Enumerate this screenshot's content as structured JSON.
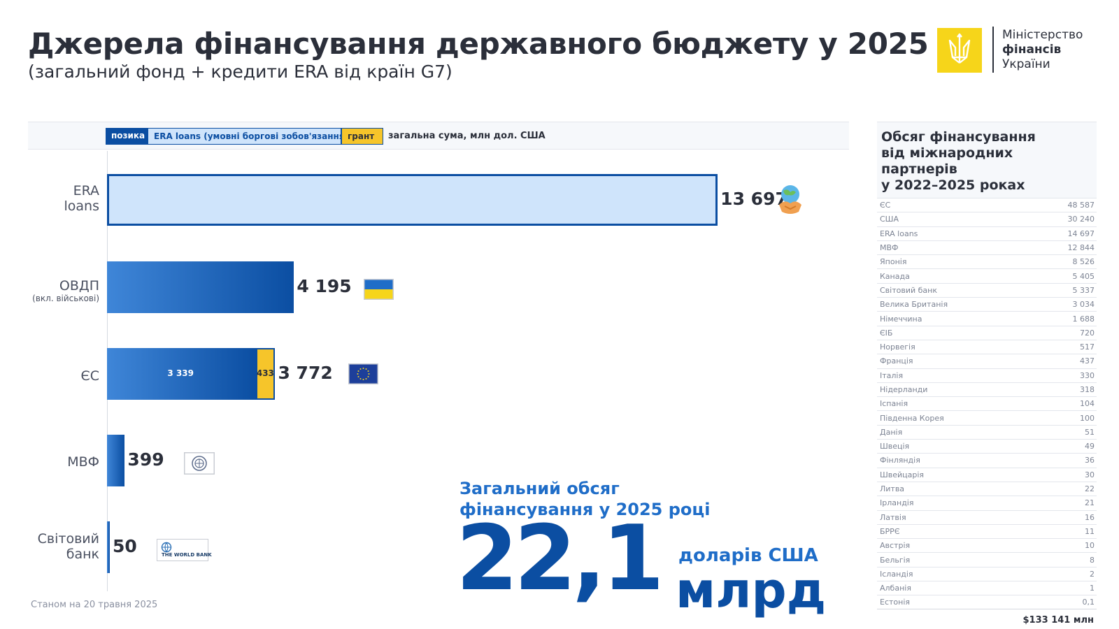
{
  "header": {
    "title": "Джерела фінансування державного бюджету у 2025",
    "subtitle": "(загальний фонд + кредити ERA від країн G7)"
  },
  "logo": {
    "line1": "Міністерство",
    "line2": "фінансів",
    "line3": "України"
  },
  "legend": {
    "loan": "позика",
    "era": "ERA loans (умовні боргові зобов'язання)",
    "grant": "грант",
    "total": "загальна сума, млн дол. США"
  },
  "colors": {
    "loan": "#0b4ea2",
    "era": "#cfe4fb",
    "grant": "#f6c52a",
    "accent": "#1f6dc8"
  },
  "chart_data": {
    "type": "bar",
    "orientation": "horizontal",
    "stacked": true,
    "categories": [
      "ERA loans",
      "ОВДП",
      "ЄС",
      "МВФ",
      "Світовий банк"
    ],
    "category_sublabels": [
      "",
      "(вкл. військові)",
      "",
      "",
      ""
    ],
    "series": [
      {
        "name": "ERA loans (умовні боргові зобов'язання)",
        "values": [
          13697,
          0,
          0,
          0,
          0
        ]
      },
      {
        "name": "позика",
        "values": [
          0,
          4195,
          3339,
          399,
          50
        ]
      },
      {
        "name": "грант",
        "values": [
          0,
          0,
          433,
          0,
          0
        ]
      }
    ],
    "totals": [
      "13 697",
      "4 195",
      "3 772",
      "399",
      "50"
    ],
    "segment_labels": {
      "eu_loan": "3 339",
      "eu_grant": "433"
    },
    "xlim": [
      0,
      16000
    ],
    "grid": false,
    "legend_position": "top",
    "icons": [
      "handshake-globe-icon",
      "ukraine-flag-icon",
      "eu-flag-icon",
      "imf-logo-icon",
      "world-bank-logo-icon"
    ]
  },
  "world_bank_logo_text": "THE WORLD BANK",
  "footnote": "Станом на 20 травня 2025",
  "total": {
    "caption_line1": "Загальний обсяг",
    "caption_line2": "фінансування у 2025 році",
    "value": "22,1",
    "unit": "доларів США",
    "scale": "млрд"
  },
  "partners": {
    "title_line1": "Обсяг фінансування",
    "title_line2": "від міжнародних партнерів",
    "title_line3": "у 2022–2025 роках",
    "rows": [
      {
        "name": "ЄС",
        "value": "48 587"
      },
      {
        "name": "США",
        "value": "30 240"
      },
      {
        "name": "ERA loans",
        "value": "14 697"
      },
      {
        "name": "МВФ",
        "value": "12 844"
      },
      {
        "name": "Японія",
        "value": "8 526"
      },
      {
        "name": "Канада",
        "value": "5 405"
      },
      {
        "name": "Світовий банк",
        "value": "5 337"
      },
      {
        "name": "Велика Британія",
        "value": "3 034"
      },
      {
        "name": "Німеччина",
        "value": "1 688"
      },
      {
        "name": "ЄІБ",
        "value": "720"
      },
      {
        "name": "Норвегія",
        "value": "517"
      },
      {
        "name": "Франція",
        "value": "437"
      },
      {
        "name": "Італія",
        "value": "330"
      },
      {
        "name": "Нідерланди",
        "value": "318"
      },
      {
        "name": "Іспанія",
        "value": "104"
      },
      {
        "name": "Південна Корея",
        "value": "100"
      },
      {
        "name": "Данія",
        "value": "51"
      },
      {
        "name": "Швеція",
        "value": "49"
      },
      {
        "name": "Фінляндія",
        "value": "36"
      },
      {
        "name": "Швейцарія",
        "value": "30"
      },
      {
        "name": "Литва",
        "value": "22"
      },
      {
        "name": "Ірландія",
        "value": "21"
      },
      {
        "name": "Латвія",
        "value": "16"
      },
      {
        "name": "БРРЄ",
        "value": "11"
      },
      {
        "name": "Австрія",
        "value": "10"
      },
      {
        "name": "Бельгія",
        "value": "8"
      },
      {
        "name": "Ісландія",
        "value": "2"
      },
      {
        "name": "Албанія",
        "value": "1"
      },
      {
        "name": "Естонія",
        "value": "0,1"
      }
    ],
    "total": "$133 141 млн"
  }
}
